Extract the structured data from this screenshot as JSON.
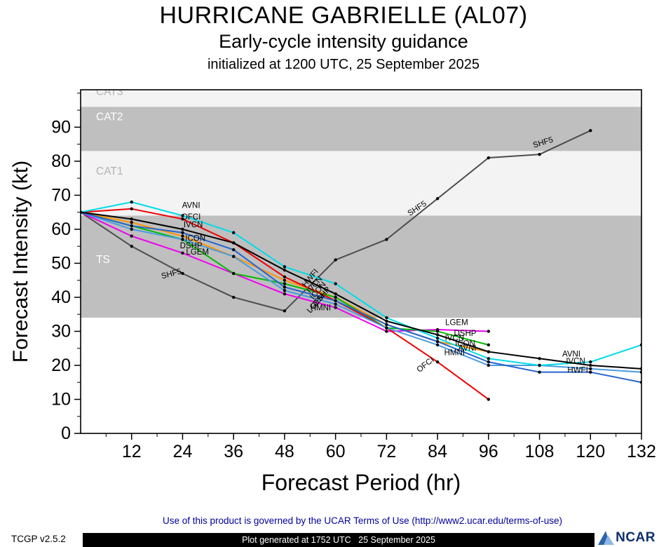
{
  "chart_data": {
    "type": "line",
    "title": "HURRICANE GABRIELLE (AL07)",
    "subtitle": "Early-cycle intensity guidance",
    "init_line": "initialized at 1200 UTC, 25 September 2025",
    "xlabel": "Forecast Period (hr)",
    "ylabel": "Forecast Intensity (kt)",
    "xlim": [
      0,
      132
    ],
    "ylim": [
      0,
      101
    ],
    "xticks": [
      12,
      24,
      36,
      48,
      60,
      72,
      84,
      96,
      108,
      120,
      132
    ],
    "xminor_step": 6,
    "yticks": [
      0,
      10,
      20,
      30,
      40,
      50,
      60,
      70,
      80,
      90
    ],
    "yminor_step": 5,
    "grid": false,
    "legend": "none",
    "bands": [
      {
        "label": "TS",
        "from": 34,
        "to": 64,
        "fill": "#bfbfbf",
        "label_color": "#ffffff",
        "label_kt": 51
      },
      {
        "label": "CAT1",
        "from": 64,
        "to": 83,
        "fill": "#f3f3f3",
        "label_color": "#b3b3b3",
        "label_kt": 77
      },
      {
        "label": "CAT2",
        "from": 83,
        "to": 96,
        "fill": "#bfbfbf",
        "label_color": "#ffffff",
        "label_kt": 93
      },
      {
        "label": "CAT3",
        "from": 96,
        "to": 101,
        "fill": "#f3f3f3",
        "label_color": "#b3b3b3",
        "label_kt": 100.4
      }
    ],
    "series": [
      {
        "name": "SHF5",
        "color": "#4d4d4d",
        "hours": [
          0,
          12,
          24,
          36,
          48,
          60,
          72,
          84,
          96,
          108,
          120
        ],
        "values": [
          65,
          55,
          47,
          40,
          36,
          51,
          57,
          69,
          81,
          82,
          89
        ]
      },
      {
        "name": "ICON",
        "color": "#ff9500",
        "hours": [
          0,
          12,
          24,
          36,
          48,
          60,
          72,
          84,
          96
        ],
        "values": [
          65,
          62,
          58,
          52,
          45,
          40,
          32,
          27,
          24
        ]
      },
      {
        "name": "LGEM",
        "color": "#ee00ee",
        "hours": [
          0,
          12,
          24,
          36,
          48,
          60,
          72,
          84,
          96
        ],
        "values": [
          65,
          58,
          53,
          47,
          41,
          37,
          30,
          30.5,
          30
        ]
      },
      {
        "name": "DSHP",
        "color": "#00bb00",
        "hours": [
          0,
          12,
          24,
          36,
          48,
          60,
          72,
          84,
          96
        ],
        "values": [
          65,
          61,
          57,
          47,
          44,
          40,
          31,
          30,
          26
        ]
      },
      {
        "name": "OFCI",
        "color": "#ee0000",
        "hours": [
          0,
          12,
          24,
          36,
          48,
          60,
          72,
          84,
          96
        ],
        "values": [
          65,
          66,
          63,
          56,
          46,
          39,
          31,
          21,
          10
        ]
      },
      {
        "name": "HMNI",
        "color": "#4a9de0",
        "hours": [
          0,
          12,
          24,
          36,
          48,
          60,
          72,
          84,
          96,
          108,
          120,
          132
        ],
        "values": [
          65,
          60,
          57,
          52,
          42,
          38,
          31,
          26,
          20,
          20,
          19,
          18
        ]
      },
      {
        "name": "HWFI",
        "color": "#2565cf",
        "hours": [
          0,
          12,
          24,
          36,
          48,
          60,
          72,
          84,
          96,
          108,
          120,
          132
        ],
        "values": [
          65,
          61,
          59,
          54,
          43,
          39,
          32,
          27,
          21,
          18,
          18,
          15
        ]
      },
      {
        "name": "AVNI",
        "color": "#00dce8",
        "hours": [
          0,
          12,
          24,
          36,
          48,
          60,
          72,
          84,
          96,
          108,
          120,
          132
        ],
        "values": [
          65,
          68,
          64,
          59,
          49,
          44,
          34,
          28,
          22,
          20,
          21,
          26
        ]
      },
      {
        "name": "IVCN",
        "color": "#000000",
        "hours": [
          0,
          12,
          24,
          36,
          48,
          60,
          72,
          84,
          96,
          108,
          120,
          132
        ],
        "values": [
          65,
          63,
          60,
          56,
          48,
          41,
          33,
          29,
          24,
          22,
          20,
          19
        ]
      }
    ],
    "labels": [
      {
        "text": "AVNI",
        "hr": 26,
        "kt": 66.3,
        "rot": 0
      },
      {
        "text": "OFCI",
        "hr": 26,
        "kt": 62.9,
        "rot": 0
      },
      {
        "text": "IVCN",
        "hr": 26.5,
        "kt": 60.6,
        "rot": 0
      },
      {
        "text": "ICON",
        "hr": 27,
        "kt": 56.6,
        "rot": 0
      },
      {
        "text": "DSHP",
        "hr": 26,
        "kt": 54.4,
        "rot": 0
      },
      {
        "text": "LGEM",
        "hr": 27.5,
        "kt": 52.6,
        "rot": 0
      },
      {
        "text": "SHF5",
        "hr": 21.5,
        "kt": 46.2,
        "rot": -15
      },
      {
        "text": "HWFI",
        "hr": 54.5,
        "kt": 45.2,
        "rot": -50
      },
      {
        "text": "IVCN",
        "hr": 55.5,
        "kt": 43.2,
        "rot": -50
      },
      {
        "text": "ICON",
        "hr": 56.3,
        "kt": 41.5,
        "rot": -50
      },
      {
        "text": "DSHP",
        "hr": 57.2,
        "kt": 39.8,
        "rot": -50
      },
      {
        "text": "LGEM",
        "hr": 55.8,
        "kt": 37.8,
        "rot": -50
      },
      {
        "text": "HMNI",
        "hr": 56.5,
        "kt": 36.2,
        "rot": 0
      },
      {
        "text": "LGEM",
        "hr": 88.5,
        "kt": 31.8,
        "rot": 0
      },
      {
        "text": "DSHP",
        "hr": 90.5,
        "kt": 28.6,
        "rot": 0
      },
      {
        "text": "IVCN",
        "hr": 88,
        "kt": 27.3,
        "rot": 0
      },
      {
        "text": "ICON",
        "hr": 90.5,
        "kt": 25.7,
        "rot": 0
      },
      {
        "text": "AVNI",
        "hr": 91,
        "kt": 24.3,
        "rot": 0
      },
      {
        "text": "HMNI",
        "hr": 88,
        "kt": 23,
        "rot": 0
      },
      {
        "text": "OFCI",
        "hr": 81.5,
        "kt": 19.6,
        "rot": -38
      },
      {
        "text": "SHF5",
        "hr": 79.5,
        "kt": 65.5,
        "rot": -33
      },
      {
        "text": "SHF5",
        "hr": 109,
        "kt": 84.8,
        "rot": -17
      },
      {
        "text": "AVNI",
        "hr": 115.5,
        "kt": 22.6,
        "rot": 0
      },
      {
        "text": "IVCN",
        "hr": 116.5,
        "kt": 20.5,
        "rot": 0
      },
      {
        "text": "HWFI",
        "hr": 117,
        "kt": 17.8,
        "rot": 0
      }
    ]
  },
  "footer": {
    "terms": "Use of this product is governed by the UCAR Terms of Use (http://www2.ucar.edu/terms-of-use)",
    "version": "TCGP v2.5.2",
    "generated": "Plot generated at 1752 UTC   25 September 2025",
    "logo_text": "NCAR"
  }
}
